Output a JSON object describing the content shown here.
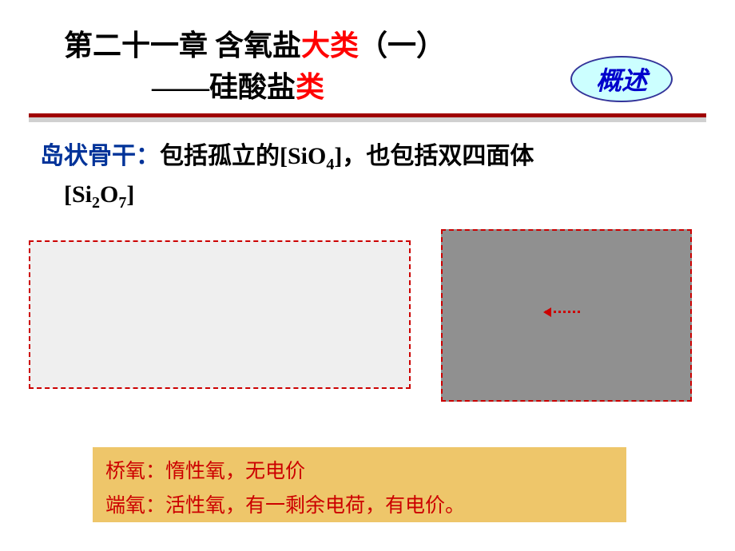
{
  "title": {
    "line1_black1": "第二十一章  含氧盐",
    "line1_red": "大类",
    "line1_black2": "（一）",
    "line2_black1": "——硅酸盐",
    "line2_red": "类"
  },
  "badge": {
    "text": "概述"
  },
  "body": {
    "blue": "岛状骨干：",
    "seg1": "包括孤立的",
    "formula1_a": "[SiO",
    "formula1_sub": "4",
    "formula1_b": "]",
    "seg2": "，也包括双四面体",
    "formula2_a": "[Si",
    "formula2_sub1": "2",
    "formula2_mid": "O",
    "formula2_sub2": "7",
    "formula2_b": "]"
  },
  "notes": {
    "line1_label": "桥氧：",
    "line1_text": "惰性氧，无电价",
    "line2_label": "端氧：",
    "line2_text": "活性氧，有一剩余电荷，有电价。"
  },
  "colors": {
    "red": "#ff0000",
    "darkred": "#a00000",
    "blue": "#003399",
    "badge_bg": "#ccffff",
    "badge_border": "#333399",
    "box_bg_left": "#efefef",
    "box_bg_right": "#909090",
    "note_bg": "#eec66a"
  }
}
